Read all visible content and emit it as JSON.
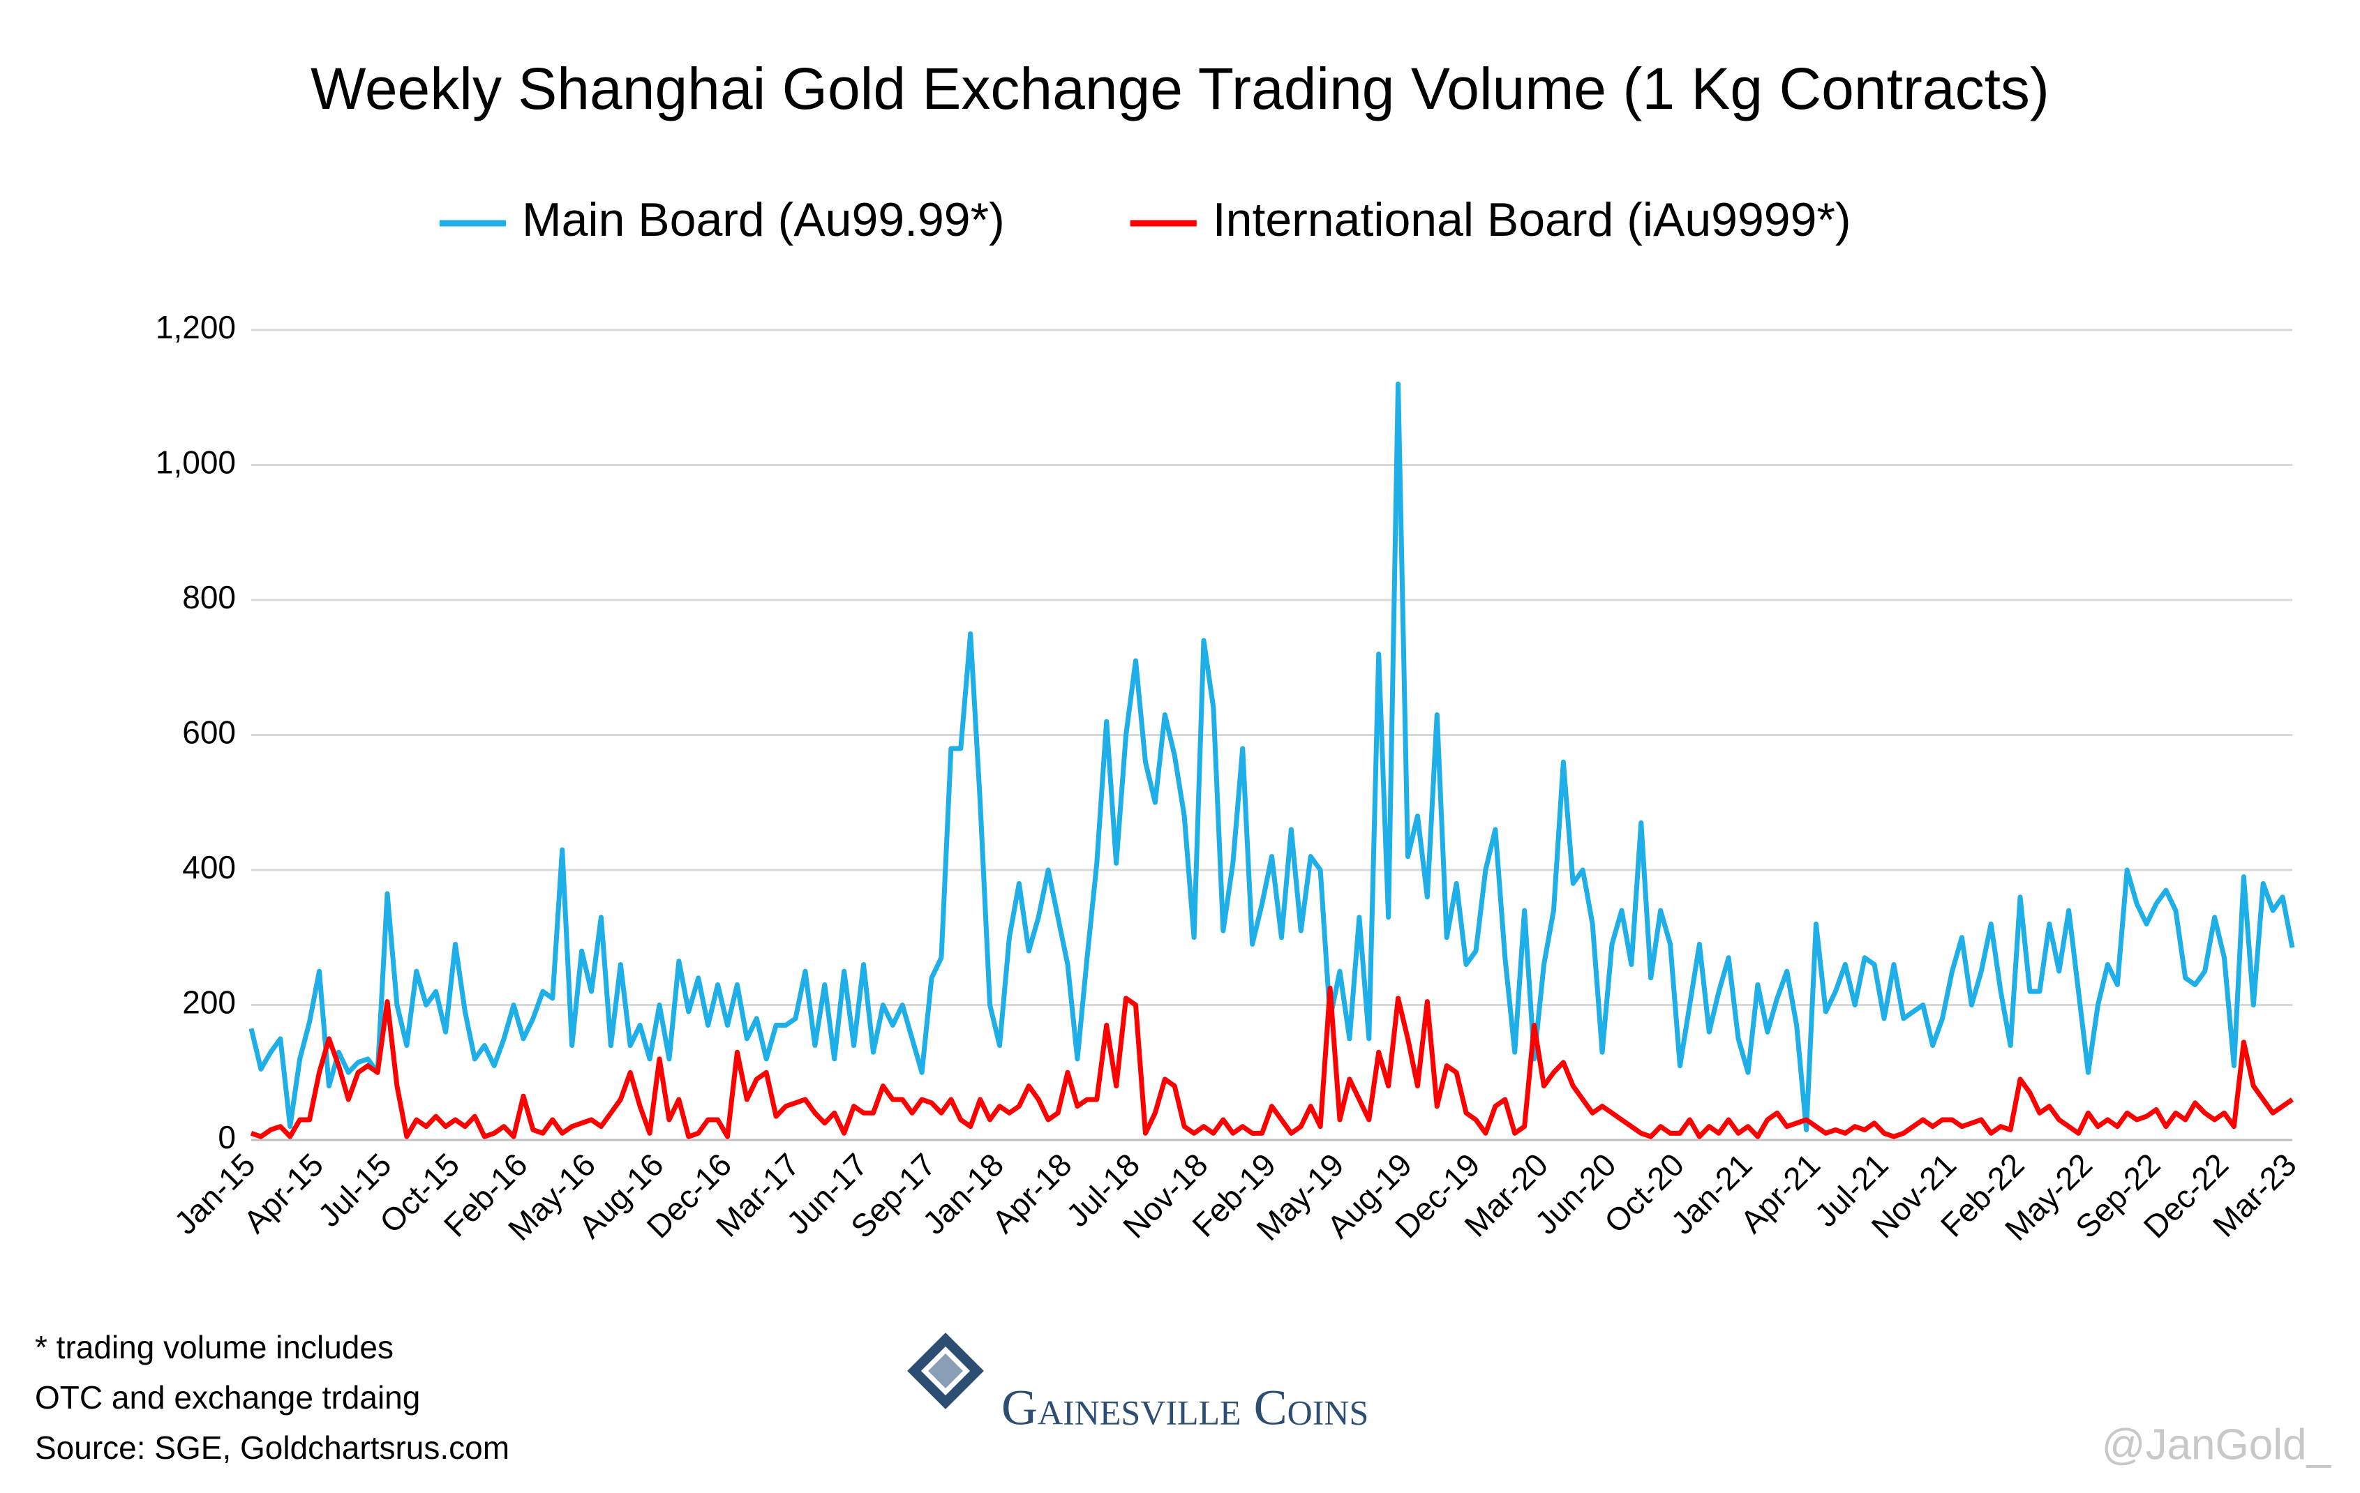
{
  "chart_data": {
    "type": "line",
    "title": "Weekly Shanghai Gold Exchange Trading Volume (1 Kg Contracts)",
    "categories": [
      "Jan-15",
      null,
      null,
      null,
      null,
      null,
      null,
      "Apr-15",
      null,
      null,
      null,
      null,
      null,
      null,
      "Jul-15",
      null,
      null,
      null,
      null,
      null,
      null,
      "Oct-15",
      null,
      null,
      null,
      null,
      null,
      null,
      "Feb-16",
      null,
      null,
      null,
      null,
      null,
      null,
      "May-16",
      null,
      null,
      null,
      null,
      null,
      null,
      "Aug-16",
      null,
      null,
      null,
      null,
      null,
      null,
      "Dec-16",
      null,
      null,
      null,
      null,
      null,
      null,
      "Mar-17",
      null,
      null,
      null,
      null,
      null,
      null,
      "Jun-17",
      null,
      null,
      null,
      null,
      null,
      null,
      "Sep-17",
      null,
      null,
      null,
      null,
      null,
      null,
      "Jan-18",
      null,
      null,
      null,
      null,
      null,
      null,
      "Apr-18",
      null,
      null,
      null,
      null,
      null,
      null,
      "Jul-18",
      null,
      null,
      null,
      null,
      null,
      null,
      "Nov-18",
      null,
      null,
      null,
      null,
      null,
      null,
      "Feb-19",
      null,
      null,
      null,
      null,
      null,
      null,
      "May-19",
      null,
      null,
      null,
      null,
      null,
      null,
      "Aug-19",
      null,
      null,
      null,
      null,
      null,
      null,
      "Dec-19",
      null,
      null,
      null,
      null,
      null,
      null,
      "Mar-20",
      null,
      null,
      null,
      null,
      null,
      null,
      "Jun-20",
      null,
      null,
      null,
      null,
      null,
      null,
      "Oct-20",
      null,
      null,
      null,
      null,
      null,
      null,
      "Jan-21",
      null,
      null,
      null,
      null,
      null,
      null,
      "Apr-21",
      null,
      null,
      null,
      null,
      null,
      null,
      "Jul-21",
      null,
      null,
      null,
      null,
      null,
      null,
      "Nov-21",
      null,
      null,
      null,
      null,
      null,
      null,
      "Feb-22",
      null,
      null,
      null,
      null,
      null,
      null,
      "May-22",
      null,
      null,
      null,
      null,
      null,
      null,
      "Sep-22",
      null,
      null,
      null,
      null,
      null,
      null,
      "Dec-22",
      null,
      null,
      null,
      null,
      null,
      null,
      "Mar-23"
    ],
    "series": [
      {
        "name": "Main Board (Au99.99*)",
        "color": "#1eaee8",
        "values": [
          165,
          105,
          130,
          150,
          20,
          120,
          175,
          250,
          80,
          130,
          100,
          115,
          120,
          100,
          365,
          200,
          140,
          250,
          200,
          220,
          160,
          290,
          190,
          120,
          140,
          110,
          150,
          200,
          150,
          180,
          220,
          210,
          430,
          140,
          280,
          220,
          330,
          140,
          260,
          140,
          170,
          120,
          200,
          120,
          265,
          190,
          240,
          170,
          230,
          170,
          230,
          150,
          180,
          120,
          170,
          170,
          180,
          250,
          140,
          230,
          120,
          250,
          140,
          260,
          130,
          200,
          170,
          200,
          150,
          100,
          240,
          270,
          580,
          580,
          750,
          500,
          200,
          140,
          300,
          380,
          280,
          330,
          400,
          330,
          260,
          120,
          270,
          410,
          620,
          410,
          600,
          710,
          560,
          500,
          630,
          570,
          480,
          300,
          740,
          640,
          310,
          410,
          580,
          290,
          350,
          420,
          300,
          460,
          310,
          420,
          400,
          180,
          250,
          150,
          330,
          150,
          720,
          330,
          1120,
          420,
          480,
          360,
          630,
          300,
          380,
          260,
          280,
          400,
          460,
          270,
          130,
          340,
          120,
          260,
          340,
          560,
          380,
          400,
          320,
          130,
          290,
          340,
          260,
          470,
          240,
          340,
          290,
          110,
          200,
          290,
          160,
          220,
          270,
          150,
          100,
          230,
          160,
          210,
          250,
          170,
          15,
          320,
          190,
          220,
          260,
          200,
          270,
          260,
          180,
          260,
          180,
          190,
          200,
          140,
          180,
          250,
          300,
          200,
          250,
          320,
          220,
          140,
          360,
          220,
          220,
          320,
          250,
          340,
          220,
          100,
          200,
          260,
          230,
          400,
          350,
          320,
          350,
          370,
          340,
          240,
          230,
          250,
          330,
          270,
          110,
          390,
          200,
          380,
          340,
          360,
          285
        ]
      },
      {
        "name": "International Board (iAu9999*)",
        "color": "#ff0000",
        "values": [
          10,
          5,
          15,
          20,
          5,
          30,
          30,
          100,
          150,
          110,
          60,
          100,
          110,
          100,
          205,
          80,
          5,
          30,
          20,
          35,
          20,
          30,
          20,
          35,
          5,
          10,
          20,
          5,
          65,
          15,
          10,
          30,
          10,
          20,
          25,
          30,
          20,
          40,
          60,
          100,
          50,
          10,
          120,
          30,
          60,
          5,
          10,
          30,
          30,
          5,
          130,
          60,
          90,
          100,
          35,
          50,
          55,
          60,
          40,
          25,
          40,
          10,
          50,
          40,
          40,
          80,
          60,
          60,
          40,
          60,
          55,
          40,
          60,
          30,
          20,
          60,
          30,
          50,
          40,
          50,
          80,
          60,
          30,
          40,
          100,
          50,
          60,
          60,
          170,
          80,
          210,
          200,
          10,
          40,
          90,
          80,
          20,
          10,
          20,
          10,
          30,
          10,
          20,
          10,
          10,
          50,
          30,
          10,
          20,
          50,
          20,
          225,
          30,
          90,
          60,
          30,
          130,
          80,
          210,
          150,
          80,
          205,
          50,
          110,
          100,
          40,
          30,
          10,
          50,
          60,
          10,
          20,
          170,
          80,
          100,
          115,
          80,
          60,
          40,
          50,
          40,
          30,
          20,
          10,
          5,
          20,
          10,
          10,
          30,
          5,
          20,
          10,
          30,
          10,
          20,
          5,
          30,
          40,
          20,
          25,
          30,
          20,
          10,
          15,
          10,
          20,
          15,
          25,
          10,
          5,
          10,
          20,
          30,
          20,
          30,
          30,
          20,
          25,
          30,
          10,
          20,
          15,
          90,
          70,
          40,
          50,
          30,
          20,
          10,
          40,
          20,
          30,
          20,
          40,
          30,
          35,
          45,
          20,
          40,
          30,
          55,
          40,
          30,
          40,
          20,
          145,
          80,
          60,
          40,
          50,
          60
        ]
      }
    ],
    "ylim": [
      0,
      1200
    ],
    "yticks": [
      0,
      200,
      400,
      600,
      800,
      {
        "value": 1000,
        "label": "1,000"
      },
      {
        "value": 1200,
        "label": "1,200"
      }
    ],
    "grid": true,
    "legend": "top"
  },
  "footnote": [
    "* trading volume includes",
    "OTC and exchange trdaing",
    "Source: SGE, Goldchartsrus.com"
  ],
  "brand": "Gainesville Coins",
  "watermark": "@JanGold_"
}
